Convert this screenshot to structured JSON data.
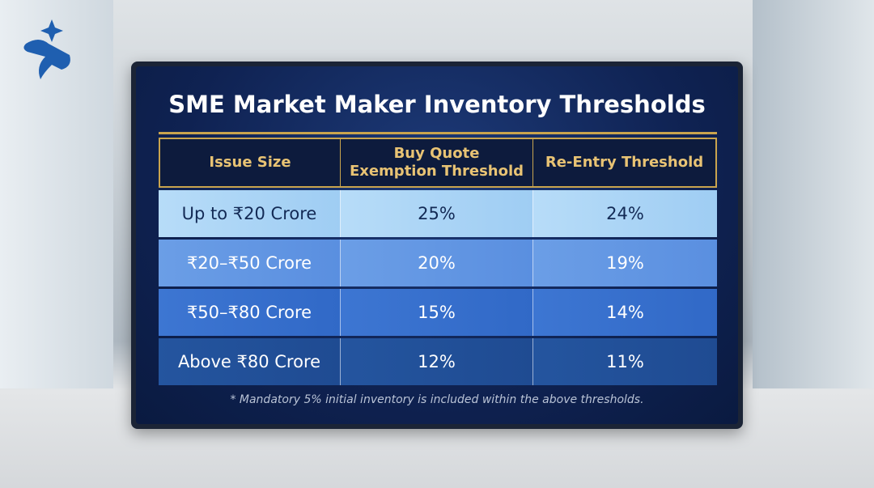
{
  "title": "SME Market Maker Inventory Thresholds",
  "table": {
    "header": [
      "Issue Size",
      "Buy Quote Exemption Threshold",
      "Re-Entry Threshold"
    ],
    "rows": [
      [
        "Up to ₹20 Crore",
        "25%",
        "24%"
      ],
      [
        "₹20–₹50 Crore",
        "20%",
        "19%"
      ],
      [
        "₹50–₹80 Crore",
        "15%",
        "14%"
      ],
      [
        "Above ₹80 Crore",
        "12%",
        "11%"
      ]
    ]
  },
  "footnote": "* Mandatory 5% initial inventory is included within the above thresholds."
}
